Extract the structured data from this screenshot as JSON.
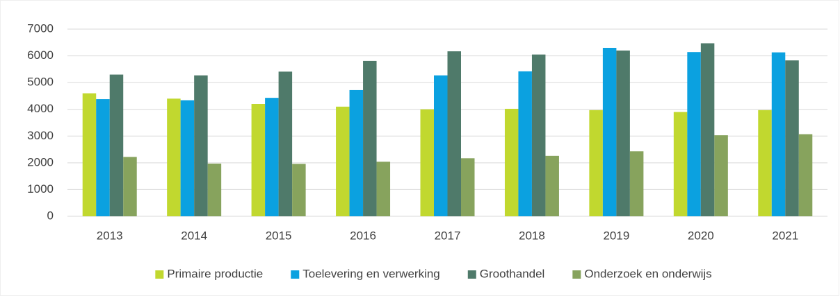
{
  "chart_data": {
    "type": "bar",
    "categories": [
      "2013",
      "2014",
      "2015",
      "2016",
      "2017",
      "2018",
      "2019",
      "2020",
      "2021"
    ],
    "series": [
      {
        "name": "Primaire productie",
        "color": "#c1d82f",
        "values": [
          4600,
          4400,
          4200,
          4100,
          4000,
          4020,
          3970,
          3900,
          3970
        ]
      },
      {
        "name": "Toelevering en verwerking",
        "color": "#0ba1e0",
        "values": [
          4380,
          4340,
          4430,
          4720,
          5270,
          5420,
          6300,
          6140,
          6130
        ]
      },
      {
        "name": "Groothandel",
        "color": "#4f7a6a",
        "values": [
          5300,
          5270,
          5410,
          5810,
          6170,
          6050,
          6200,
          6470,
          5830
        ]
      },
      {
        "name": "Onderzoek en onderwijs",
        "color": "#87a35d",
        "values": [
          2220,
          1970,
          1960,
          2040,
          2170,
          2260,
          2430,
          3030,
          3070
        ]
      }
    ],
    "ylim": [
      0,
      7000
    ],
    "yticks": [
      0,
      1000,
      2000,
      3000,
      4000,
      5000,
      6000,
      7000
    ],
    "grid": true,
    "legend": "bottom"
  }
}
